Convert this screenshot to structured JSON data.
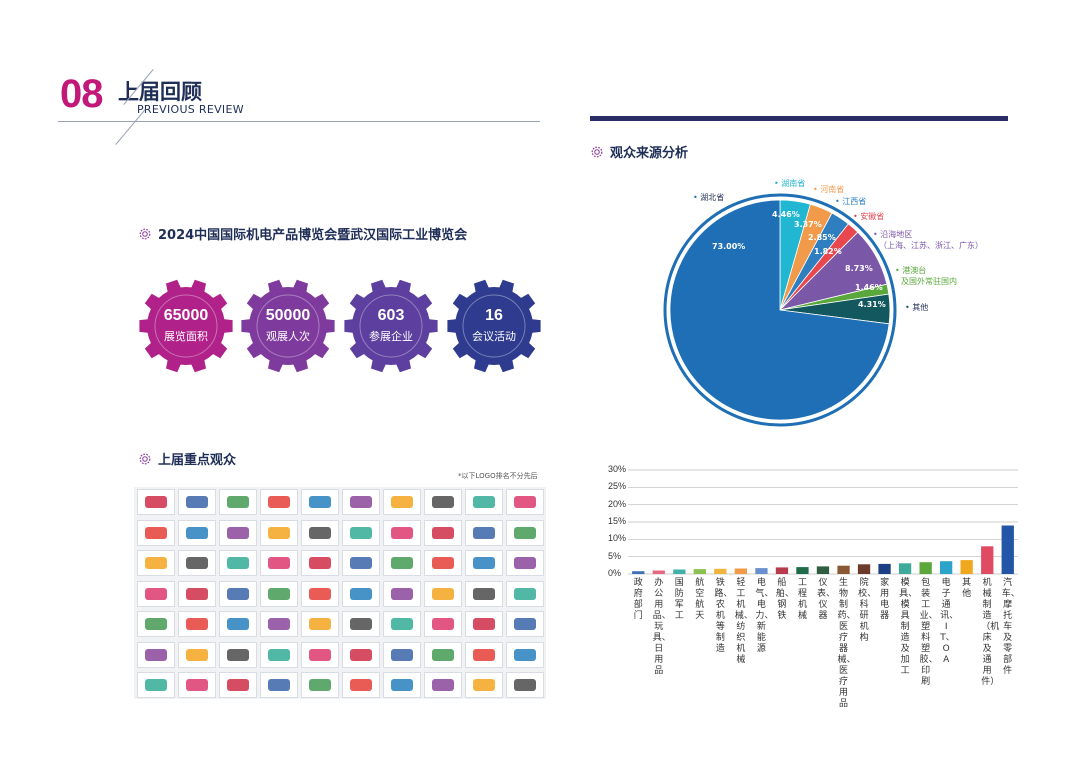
{
  "header": {
    "number": "08",
    "title": "上届回顾",
    "subtitle": "PREVIOUS REVIEW"
  },
  "expo": {
    "title": "2024中国国际机电产品博览会暨武汉国际工业博览会",
    "stats": [
      {
        "value": "65000",
        "label": "展览面积",
        "color": "#b0228a"
      },
      {
        "value": "50000",
        "label": "观展人次",
        "color": "#7f3a9d"
      },
      {
        "value": "603",
        "label": "参展企业",
        "color": "#5c3f9e"
      },
      {
        "value": "16",
        "label": "会议活动",
        "color": "#2f3b8f"
      }
    ]
  },
  "audience": {
    "title": "上届重点观众",
    "note": "*以下LOGO排名不分先后"
  },
  "source": {
    "title": "观众来源分析"
  },
  "colors": {
    "accent": "#c2187a",
    "navy": "#1f2e57",
    "bar": "#2b2d66"
  },
  "chart_data": [
    {
      "type": "pie",
      "title": "观众来源分析",
      "slices": [
        {
          "name": "湖北省",
          "value": 73.0,
          "label": "73.00%",
          "color": "#1e6fb5"
        },
        {
          "name": "湖南省",
          "value": 4.46,
          "label": "4.46%",
          "color": "#21b6d2"
        },
        {
          "name": "河南省",
          "value": 3.37,
          "label": "3.37%",
          "color": "#f09a4a"
        },
        {
          "name": "江西省",
          "value": 2.85,
          "label": "2.85%",
          "color": "#2f7fc0"
        },
        {
          "name": "安徽省",
          "value": 1.82,
          "label": "1.82%",
          "color": "#e8474e"
        },
        {
          "name": "沿海地区",
          "value": 8.73,
          "label": "8.73%",
          "color": "#7b57a8",
          "note": "（上海、江苏、浙江、广东）"
        },
        {
          "name": "港澳台",
          "value": 1.46,
          "label": "1.46%",
          "color": "#5aa83b",
          "note": "及国外常驻国内"
        },
        {
          "name": "其他",
          "value": 4.31,
          "label": "4.31%",
          "color": "#12585e"
        }
      ]
    },
    {
      "type": "bar",
      "ylim": [
        0,
        30
      ],
      "yticks": [
        "0%",
        "5%",
        "10%",
        "15%",
        "20%",
        "25%",
        "30%"
      ],
      "categories": [
        "政府部门",
        "办公用品、玩具、日用品",
        "国防军工",
        "航空航天",
        "铁路、农机等制造",
        "轻工机械、纺织机械",
        "电气、电力、新能源",
        "船舶、钢铁",
        "工程机械",
        "仪表、仪器",
        "生物制药、医疗器械、医疗用品",
        "院校、科研机构",
        "家用电器",
        "模具、模具制造及加工",
        "包装工业、塑料塑胶、印刷",
        "电子通讯、IT、OA",
        "其他",
        "机械制造（机床及通用件）",
        "汽车、摩托车及零部件"
      ],
      "values": [
        0.8,
        1.0,
        1.3,
        1.4,
        1.5,
        1.6,
        1.7,
        1.9,
        2.0,
        2.2,
        2.4,
        2.8,
        2.9,
        3.1,
        3.4,
        3.7,
        4.0,
        8.0,
        14.0
      ],
      "colors": [
        "#3f6fb5",
        "#e8677f",
        "#3fb2a5",
        "#8cc152",
        "#f0b43c",
        "#f19a4a",
        "#6a8fd0",
        "#b83b4d",
        "#1f6b4a",
        "#2f5d3f",
        "#8a5a34",
        "#6b3a2a",
        "#1c3f84",
        "#3faa9a",
        "#5aa83b",
        "#2aa4c8",
        "#f0a820",
        "#e04a62",
        "#2456a8"
      ]
    }
  ]
}
